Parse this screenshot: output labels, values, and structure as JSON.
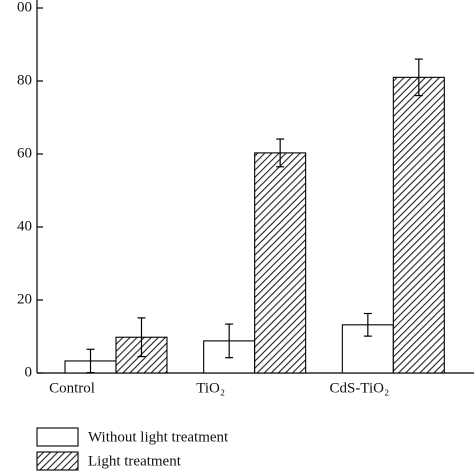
{
  "chart_data": {
    "type": "bar",
    "categories": [
      "Control",
      "TiO₂",
      "CdS-TiO₂"
    ],
    "series": [
      {
        "name": "Without light treatment",
        "color": "#ffffff",
        "pattern": "solid",
        "values": [
          3.3,
          8.8,
          13.2
        ],
        "errors": [
          3.2,
          4.6,
          3.1
        ]
      },
      {
        "name": "Light treatment",
        "color": "#000000",
        "pattern": "hatch",
        "values": [
          9.8,
          60.3,
          81
        ],
        "errors": [
          5.3,
          3.8,
          5
        ]
      }
    ],
    "ylim": [
      0,
      100
    ],
    "yticks": [
      0,
      20,
      40,
      60,
      80,
      {
        "value": 100,
        "label": "00"
      }
    ],
    "legend": "bottom-left"
  }
}
